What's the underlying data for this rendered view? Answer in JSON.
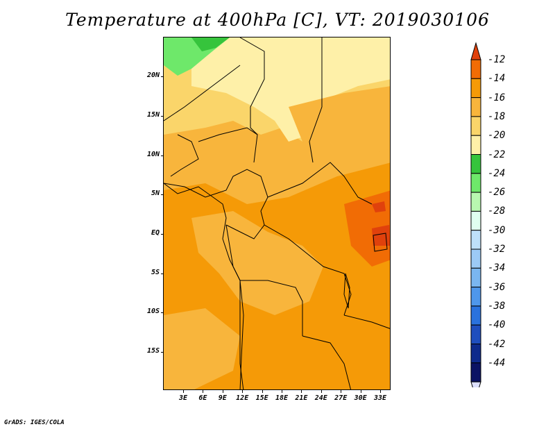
{
  "title": "Temperature at 400hPa [C], VT: 2019030106",
  "credit": "GrADS: IGES/COLA",
  "lat_labels": [
    "20N",
    "15N",
    "10N",
    "5N",
    "EQ",
    "5S",
    "10S",
    "15S"
  ],
  "lon_labels": [
    "3E",
    "6E",
    "9E",
    "12E",
    "15E",
    "18E",
    "21E",
    "24E",
    "27E",
    "30E",
    "33E"
  ],
  "colorbar": {
    "labels": [
      "-12",
      "-14",
      "-16",
      "-18",
      "-20",
      "-22",
      "-24",
      "-26",
      "-28",
      "-30",
      "-32",
      "-34",
      "-36",
      "-38",
      "-40",
      "-42",
      "-44"
    ],
    "colors": [
      "#e0410c",
      "#f16c05",
      "#f59a07",
      "#f8b53c",
      "#fad56a",
      "#fef0a8",
      "#36c43c",
      "#6ee86a",
      "#b8f8b0",
      "#e0fff0",
      "#bee0fa",
      "#9ccaf6",
      "#7ab6f0",
      "#4f97eb",
      "#2a72de",
      "#1f4ebe",
      "#0e2a8c",
      "#0b1364",
      "#dde0ff"
    ]
  },
  "fields": {
    "colors": {
      "warm_orange": "#f59a07",
      "mid_orange": "#f8b53c",
      "light_yellow": "#fad56a",
      "pale_yellow": "#fef0a8",
      "hot_orange": "#f16c05",
      "hot_red": "#e0410c",
      "green_light": "#6ee86a",
      "green_dark": "#36c43c"
    }
  }
}
